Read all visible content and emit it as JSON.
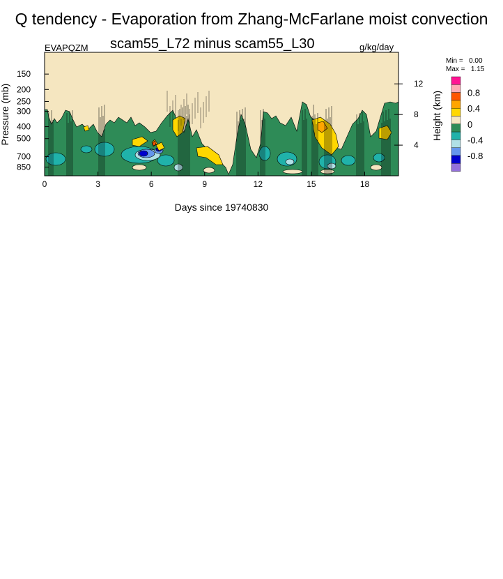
{
  "title": "Q tendency - Evaporation from Zhang-McFarlane moist convection",
  "chart_data": {
    "type": "heatmap",
    "subtitle": "scam55_L72 minus scam55_L30",
    "variable": "EVAPQZM",
    "units": "g/kg/day",
    "xlabel": "Days since 19740830",
    "ylabel": "Pressure (mb)",
    "ylabel_right": "Height (km)",
    "x_ticks": [
      "0",
      "3",
      "6",
      "9",
      "12",
      "15",
      "18"
    ],
    "x_tick_values": [
      0,
      3,
      6,
      9,
      12,
      15,
      18
    ],
    "xlim": [
      0,
      19.9
    ],
    "y_ticks": [
      "150",
      "200",
      "250",
      "300",
      "400",
      "500",
      "700",
      "850"
    ],
    "y_tick_values": [
      150,
      200,
      250,
      300,
      400,
      500,
      700,
      850
    ],
    "ylim_mb": [
      100,
      1000
    ],
    "y_right_ticks": [
      "12",
      "8",
      "4"
    ],
    "y_right_tick_values": [
      12,
      8,
      4
    ],
    "min_label": "Min =",
    "min_value": "0.00",
    "max_label": "Max =",
    "max_value": "1.15",
    "colorbar": {
      "labels": [
        "0.8",
        "0.4",
        "0",
        "-0.4",
        "-0.8"
      ],
      "colors": [
        "#ff1493",
        "#ffaab4",
        "#ff5500",
        "#ffa500",
        "#ffd700",
        "#f5e6c0",
        "#2e8b57",
        "#20b2aa",
        "#b0e0e6",
        "#6495ed",
        "#0000cd",
        "#9370db"
      ]
    },
    "colors": {
      "background": "#f5e6c0",
      "zero_neg": "#2e8b57",
      "weak_neg": "#20b2aa",
      "light_neg": "#b0e0e6",
      "mid_neg": "#6495ed",
      "strong_neg": "#0000cd",
      "weak_pos": "#ffd700",
      "mid_pos": "#ffa500",
      "strong_pos": "#ff5500"
    }
  }
}
